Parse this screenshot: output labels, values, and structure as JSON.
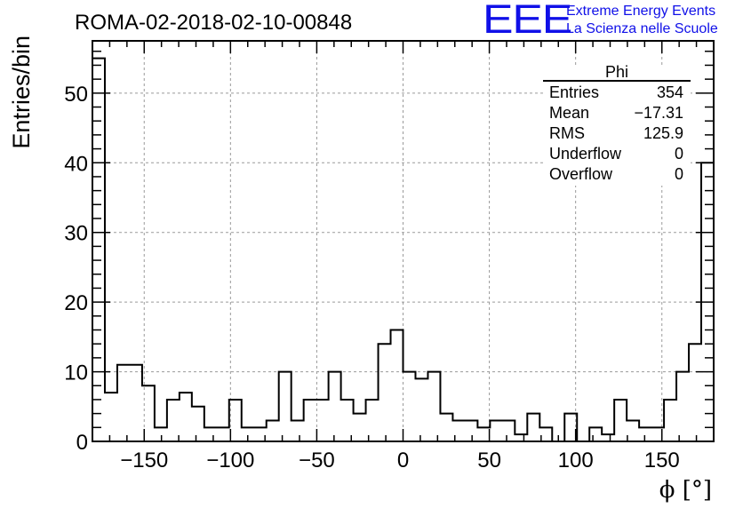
{
  "chart_data": {
    "type": "bar",
    "title": "ROMA-02-2018-02-10-00848",
    "xlabel": "ϕ [°]",
    "ylabel": "Entries/bin",
    "xlim": [
      -180,
      180
    ],
    "ylim": [
      0,
      57.5
    ],
    "bin_width": 7.2,
    "x_ticks": [
      -150,
      -100,
      -50,
      0,
      50,
      100,
      150
    ],
    "y_ticks": [
      0,
      10,
      20,
      30,
      40,
      50
    ],
    "grid": true,
    "values": [
      55,
      7,
      11,
      11,
      8,
      2,
      6,
      7,
      5,
      2,
      2,
      6,
      2,
      2,
      3,
      10,
      3,
      6,
      6,
      10,
      6,
      4,
      6,
      14,
      16,
      10,
      9,
      10,
      4,
      3,
      3,
      2,
      3,
      3,
      1,
      4,
      2,
      0,
      4,
      0,
      2,
      1,
      6,
      3,
      2,
      2,
      6,
      10,
      14,
      40
    ],
    "stats_box": {
      "title": "Phi",
      "rows": [
        {
          "label": "Entries",
          "value": "354"
        },
        {
          "label": "Mean",
          "value": "−17.31"
        },
        {
          "label": "RMS",
          "value": "125.9"
        },
        {
          "label": "Underflow",
          "value": "0"
        },
        {
          "label": "Overflow",
          "value": "0"
        }
      ]
    }
  },
  "logo": {
    "mark": "EEE",
    "line1": "Extreme Energy Events",
    "line2": "La Scienza nelle Scuole",
    "color": "#1010e8"
  }
}
